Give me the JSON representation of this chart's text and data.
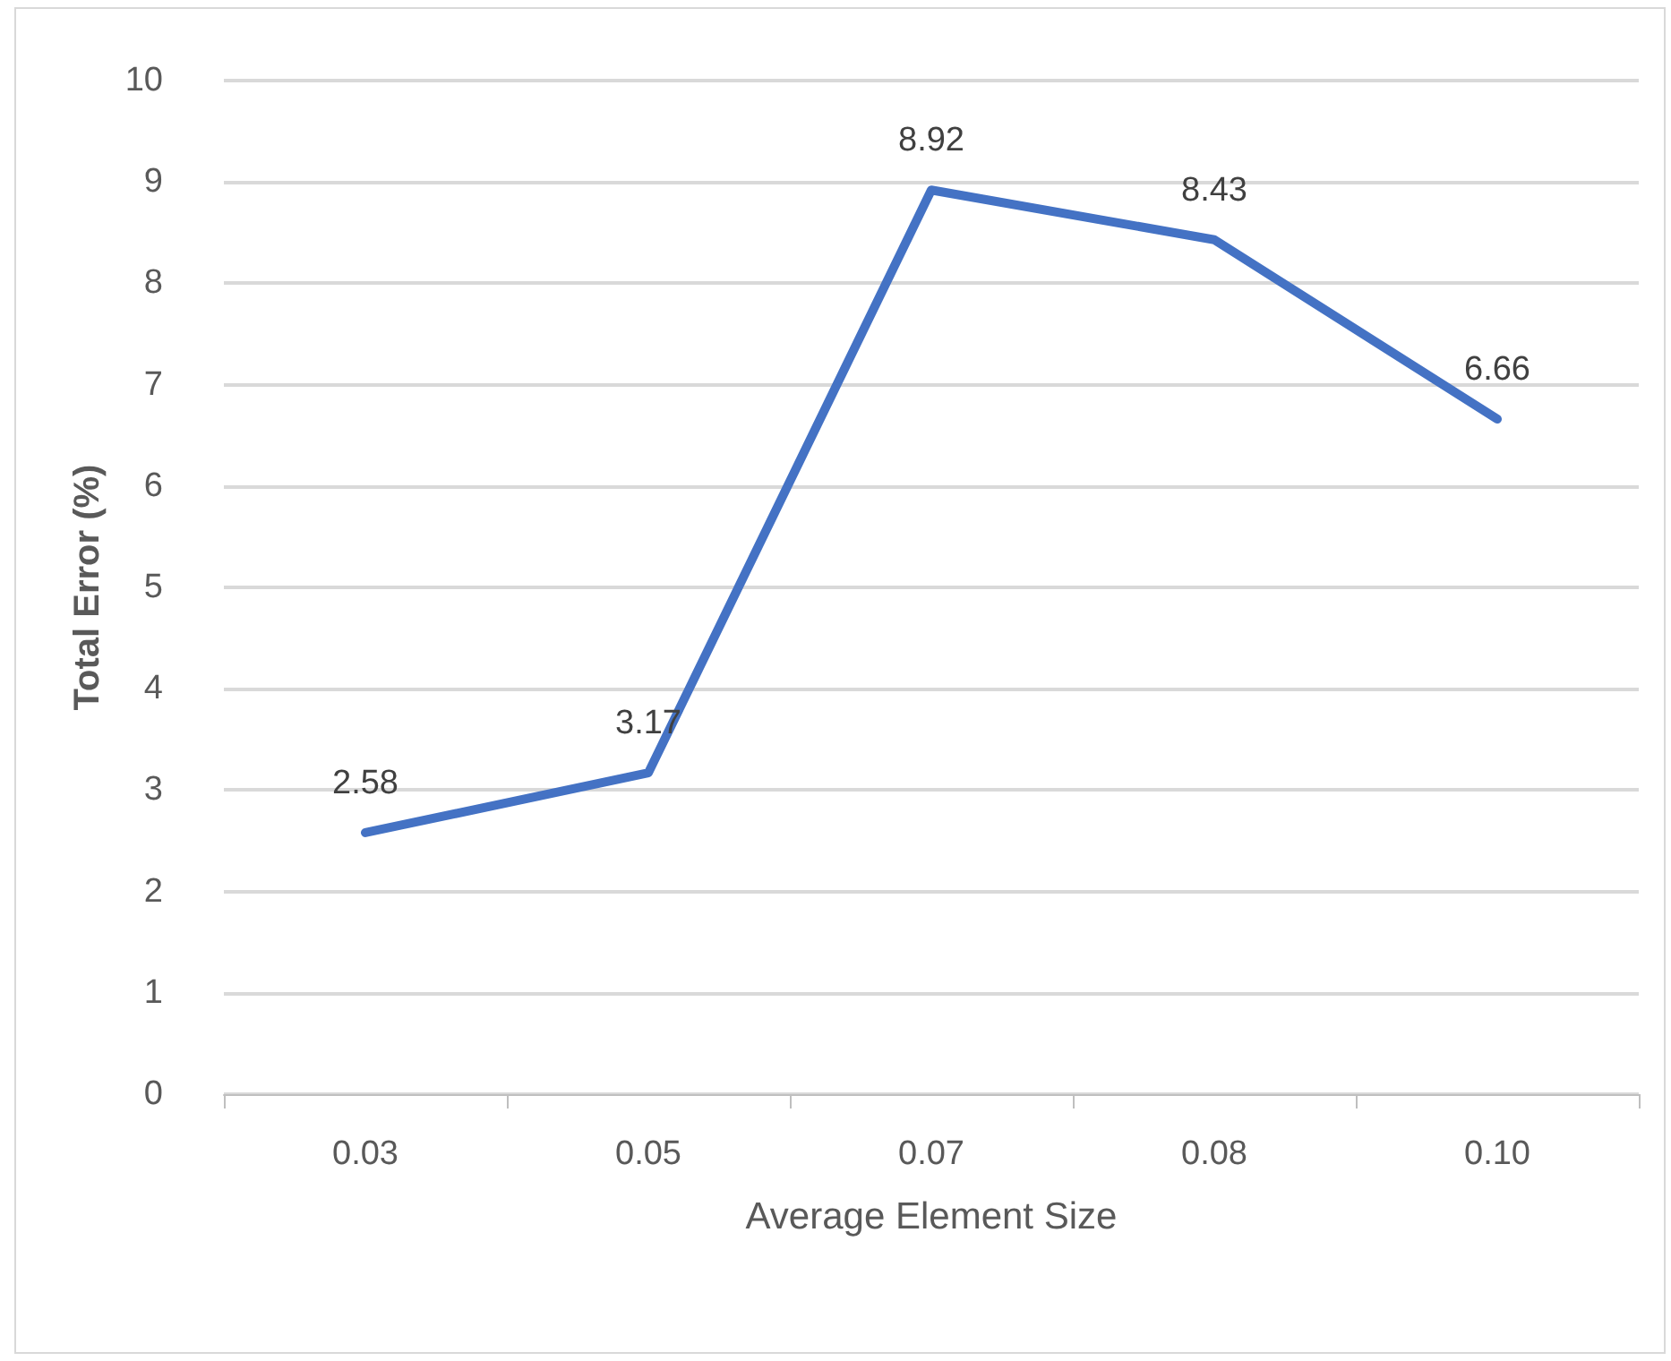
{
  "chart_data": {
    "type": "line",
    "xlabel": "Average Element Size",
    "ylabel": "Total Error (%)",
    "categories": [
      "0.03",
      "0.05",
      "0.07",
      "0.08",
      "0.10"
    ],
    "series": [
      {
        "color": "#4472c4",
        "values": [
          2.58,
          3.17,
          8.92,
          8.43,
          6.66
        ]
      }
    ],
    "ylim": [
      0,
      10
    ],
    "yticks": [
      0,
      1,
      2,
      3,
      4,
      5,
      6,
      7,
      8,
      9,
      10
    ],
    "grid": "y",
    "data_labels": true,
    "marker": "none",
    "line_style": "solid"
  }
}
